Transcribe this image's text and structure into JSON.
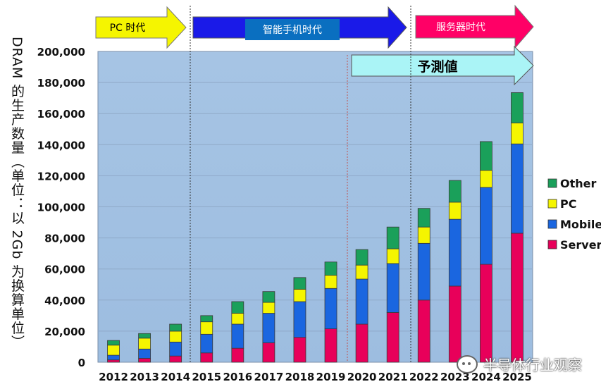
{
  "chart_data": {
    "type": "bar",
    "stacked": true,
    "ylabel": "DRAM 的生产数量（单位：以 2Gb 为换算单位）",
    "ylim": [
      0,
      200000
    ],
    "ytick_labels": [
      "0",
      "20,000",
      "40,000",
      "60,000",
      "80,000",
      "100,000",
      "120,000",
      "140,000",
      "160,000",
      "180,000",
      "200,000"
    ],
    "yticks": [
      0,
      20000,
      40000,
      60000,
      80000,
      100000,
      120000,
      140000,
      160000,
      180000,
      200000
    ],
    "categories": [
      "2012",
      "2013",
      "2014",
      "2015",
      "2016",
      "2017",
      "2018",
      "2019",
      "2020",
      "2021",
      "2022",
      "2023",
      "2024",
      "2025"
    ],
    "series": [
      {
        "name": "Server",
        "color": "#e8005a",
        "values": [
          1500,
          2500,
          4000,
          6000,
          9000,
          12500,
          16000,
          21500,
          24500,
          32000,
          40000,
          49000,
          63000,
          83000
        ]
      },
      {
        "name": "Mobile",
        "color": "#1a66e0",
        "values": [
          3000,
          6000,
          9000,
          12000,
          15500,
          19000,
          23000,
          26000,
          29000,
          31500,
          36500,
          43000,
          49500,
          57500
        ]
      },
      {
        "name": "PC",
        "color": "#f5f500",
        "values": [
          6500,
          7000,
          7000,
          8000,
          7000,
          7000,
          8000,
          8500,
          9000,
          9500,
          10500,
          11000,
          11000,
          13500
        ]
      },
      {
        "name": "Other",
        "color": "#1aa05a",
        "values": [
          3000,
          3000,
          4500,
          4000,
          7500,
          7000,
          7500,
          8500,
          10000,
          14000,
          12000,
          14000,
          18500,
          19500
        ]
      }
    ],
    "legend_order": [
      "Other",
      "PC",
      "Mobile",
      "Server"
    ],
    "legend_position": "right",
    "eras": [
      {
        "label": "PC 时代",
        "color": "#f5f500",
        "text_color": "#000000"
      },
      {
        "label": "智能手机时代",
        "color": "#1a1ae8",
        "text_color": "#ffffff",
        "label_bg": "#0a6fc0"
      },
      {
        "label": "服务器时代",
        "color": "#ff0066",
        "text_color": "#ffffff"
      }
    ],
    "forecast_label": "予測値",
    "forecast_color": "#aaf4f6"
  },
  "watermark": "半导体行业观察"
}
